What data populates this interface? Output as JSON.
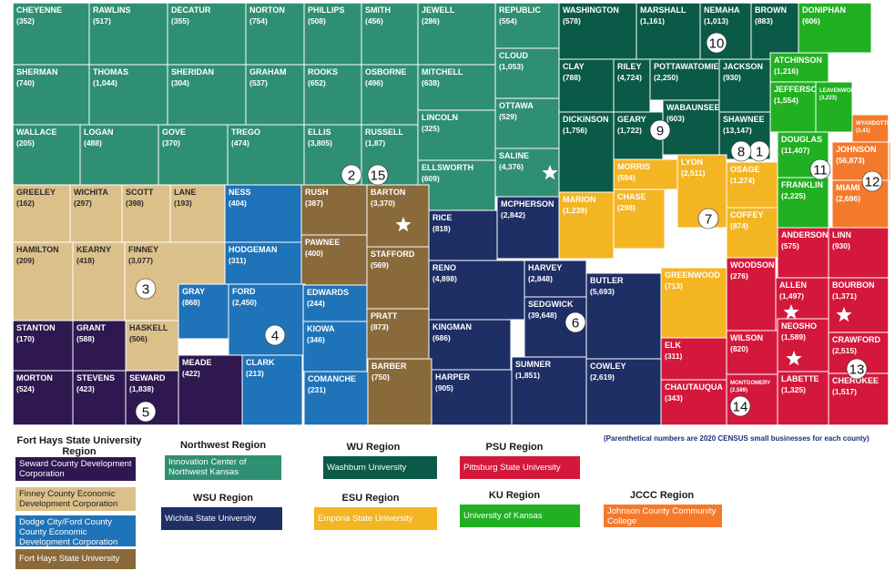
{
  "colors": {
    "northwest": "#2f8f73",
    "ku_board": "#0b5a48",
    "ku": "#21b021",
    "jccc": "#f47a2b",
    "fhsu_tan": "#dcc08a",
    "seward": "#2f1750",
    "dodge": "#1f73b8",
    "fhsu": "#8a6a3a",
    "wsu": "#1e2f66",
    "esu": "#f4b523",
    "psu": "#d4183c"
  },
  "counties": [
    {
      "name": "CHEYENNE",
      "value": "(352)",
      "region": "northwest"
    },
    {
      "name": "RAWLINS",
      "value": "(517)",
      "region": "northwest"
    },
    {
      "name": "DECATUR",
      "value": "(355)",
      "region": "northwest"
    },
    {
      "name": "NORTON",
      "value": "(754)",
      "region": "northwest"
    },
    {
      "name": "PHILLIPS",
      "value": "(508)",
      "region": "northwest"
    },
    {
      "name": "SMITH",
      "value": "(456)",
      "region": "northwest"
    },
    {
      "name": "JEWELL",
      "value": "(286)",
      "region": "northwest"
    },
    {
      "name": "REPUBLIC",
      "value": "(554)",
      "region": "northwest"
    },
    {
      "name": "WASHINGTON",
      "value": "(578)",
      "region": "ku_board"
    },
    {
      "name": "MARSHALL",
      "value": "(1,161)",
      "region": "ku_board"
    },
    {
      "name": "NEMAHA",
      "value": "(1,013)",
      "region": "ku_board"
    },
    {
      "name": "BROWN",
      "value": "(883)",
      "region": "ku_board"
    },
    {
      "name": "DONIPHAN",
      "value": "(606)",
      "region": "ku"
    },
    {
      "name": "SHERMAN",
      "value": "(740)",
      "region": "northwest"
    },
    {
      "name": "THOMAS",
      "value": "(1,044)",
      "region": "northwest"
    },
    {
      "name": "SHERIDAN",
      "value": "(304)",
      "region": "northwest"
    },
    {
      "name": "GRAHAM",
      "value": "(537)",
      "region": "northwest"
    },
    {
      "name": "ROOKS",
      "value": "(652)",
      "region": "northwest"
    },
    {
      "name": "OSBORNE",
      "value": "(496)",
      "region": "northwest"
    },
    {
      "name": "MITCHELL",
      "value": "(638)",
      "region": "northwest"
    },
    {
      "name": "CLOUD",
      "value": "(1,053)",
      "region": "northwest"
    },
    {
      "name": "CLAY",
      "value": "(788)",
      "region": "ku_board"
    },
    {
      "name": "RILEY",
      "value": "(4,724)",
      "region": "ku_board"
    },
    {
      "name": "POTTAWATOMIE",
      "value": "(2,250)",
      "region": "ku_board"
    },
    {
      "name": "JACKSON",
      "value": "(930)",
      "region": "ku_board"
    },
    {
      "name": "ATCHINSON",
      "value": "(1,216)",
      "region": "ku"
    },
    {
      "name": "WALLACE",
      "value": "(205)",
      "region": "northwest"
    },
    {
      "name": "LOGAN",
      "value": "(488)",
      "region": "northwest"
    },
    {
      "name": "GOVE",
      "value": "(370)",
      "region": "northwest"
    },
    {
      "name": "TREGO",
      "value": "(474)",
      "region": "northwest"
    },
    {
      "name": "ELLIS",
      "value": "(3,805)",
      "region": "northwest"
    },
    {
      "name": "RUSSELL",
      "value": "(1,87)",
      "region": "northwest"
    },
    {
      "name": "LINCOLN",
      "value": "(325)",
      "region": "northwest"
    },
    {
      "name": "OTTAWA",
      "value": "(529)",
      "region": "northwest"
    },
    {
      "name": "DICKINSON",
      "value": "(1,756)",
      "region": "ku_board"
    },
    {
      "name": "GEARY",
      "value": "(1,722)",
      "region": "ku_board"
    },
    {
      "name": "WABAUNSEE",
      "value": "(603)",
      "region": "ku_board"
    },
    {
      "name": "SHAWNEE",
      "value": "(13,147)",
      "region": "ku_board"
    },
    {
      "name": "JEFFERSON",
      "value": "(1,554)",
      "region": "ku"
    },
    {
      "name": "LEAVENWORTH",
      "value": "(3,223)",
      "region": "ku"
    },
    {
      "name": "WYANDOTTE",
      "value": "(3,41)",
      "region": "jccc"
    },
    {
      "name": "ELLSWORTH",
      "value": "(609)",
      "region": "northwest"
    },
    {
      "name": "SALINE",
      "value": "(4,376)",
      "region": "northwest"
    },
    {
      "name": "MORRIS",
      "value": "(594)",
      "region": "esu"
    },
    {
      "name": "LYON",
      "value": "(2,511)",
      "region": "esu"
    },
    {
      "name": "OSAGE",
      "value": "(1,274)",
      "region": "esu"
    },
    {
      "name": "DOUGLAS",
      "value": "(11,407)",
      "region": "ku"
    },
    {
      "name": "JOHNSON",
      "value": "(56,873)",
      "region": "jccc"
    },
    {
      "name": "GREELEY",
      "value": "(162)",
      "region": "fhsu_tan"
    },
    {
      "name": "WICHITA",
      "value": "(297)",
      "region": "fhsu_tan"
    },
    {
      "name": "SCOTT",
      "value": "(398)",
      "region": "fhsu_tan"
    },
    {
      "name": "LANE",
      "value": "(193)",
      "region": "fhsu_tan"
    },
    {
      "name": "NESS",
      "value": "(404)",
      "region": "dodge"
    },
    {
      "name": "RUSH",
      "value": "(387)",
      "region": "fhsu"
    },
    {
      "name": "BARTON",
      "value": "(3,370)",
      "region": "fhsu"
    },
    {
      "name": "RICE",
      "value": "(818)",
      "region": "wsu"
    },
    {
      "name": "MCPHERSON",
      "value": "(2,842)",
      "region": "wsu"
    },
    {
      "name": "MARION",
      "value": "(1,239)",
      "region": "esu"
    },
    {
      "name": "CHASE",
      "value": "(298)",
      "region": "esu"
    },
    {
      "name": "COFFEY",
      "value": "(874)",
      "region": "esu"
    },
    {
      "name": "FRANKLIN",
      "value": "(2,225)",
      "region": "ku"
    },
    {
      "name": "MIAMI",
      "value": "(2,696)",
      "region": "jccc"
    },
    {
      "name": "HAMILTON",
      "value": "(209)",
      "region": "fhsu_tan"
    },
    {
      "name": "KEARNY",
      "value": "(418)",
      "region": "fhsu_tan"
    },
    {
      "name": "FINNEY",
      "value": "(3,077)",
      "region": "fhsu_tan"
    },
    {
      "name": "HODGEMAN",
      "value": "(311)",
      "region": "dodge"
    },
    {
      "name": "PAWNEE",
      "value": "(400)",
      "region": "fhsu"
    },
    {
      "name": "STAFFORD",
      "value": "(569)",
      "region": "fhsu"
    },
    {
      "name": "RENO",
      "value": "(4,898)",
      "region": "wsu"
    },
    {
      "name": "HARVEY",
      "value": "(2,848)",
      "region": "wsu"
    },
    {
      "name": "BUTLER",
      "value": "(5,693)",
      "region": "wsu"
    },
    {
      "name": "GREENWOOD",
      "value": "(713)",
      "region": "esu"
    },
    {
      "name": "ANDERSON",
      "value": "(575)",
      "region": "psu"
    },
    {
      "name": "LINN",
      "value": "(930)",
      "region": "psu"
    },
    {
      "name": "GRAY",
      "value": "(868)",
      "region": "dodge"
    },
    {
      "name": "FORD",
      "value": "(2,450)",
      "region": "dodge"
    },
    {
      "name": "EDWARDS",
      "value": "(244)",
      "region": "dodge"
    },
    {
      "name": "SEDGWICK",
      "value": "(39,648)",
      "region": "wsu"
    },
    {
      "name": "WOODSON",
      "value": "(276)",
      "region": "psu"
    },
    {
      "name": "ALLEN",
      "value": "(1,497)",
      "region": "psu"
    },
    {
      "name": "BOURBON",
      "value": "(1,371)",
      "region": "psu"
    },
    {
      "name": "STANTON",
      "value": "(170)",
      "region": "seward"
    },
    {
      "name": "GRANT",
      "value": "(588)",
      "region": "seward"
    },
    {
      "name": "HASKELL",
      "value": "(506)",
      "region": "fhsu_tan"
    },
    {
      "name": "KIOWA",
      "value": "(346)",
      "region": "dodge"
    },
    {
      "name": "PRATT",
      "value": "(873)",
      "region": "fhsu"
    },
    {
      "name": "KINGMAN",
      "value": "(686)",
      "region": "wsu"
    },
    {
      "name": "WILSON",
      "value": "(820)",
      "region": "psu"
    },
    {
      "name": "NEOSHO",
      "value": "(1,589)",
      "region": "psu"
    },
    {
      "name": "CRAWFORD",
      "value": "(2,515)",
      "region": "psu"
    },
    {
      "name": "MORTON",
      "value": "(524)",
      "region": "seward"
    },
    {
      "name": "STEVENS",
      "value": "(423)",
      "region": "seward"
    },
    {
      "name": "SEWARD",
      "value": "(1,838)",
      "region": "seward"
    },
    {
      "name": "MEADE",
      "value": "(422)",
      "region": "seward"
    },
    {
      "name": "CLARK",
      "value": "(213)",
      "region": "dodge"
    },
    {
      "name": "COMANCHE",
      "value": "(231)",
      "region": "dodge"
    },
    {
      "name": "BARBER",
      "value": "(750)",
      "region": "fhsu"
    },
    {
      "name": "HARPER",
      "value": "(905)",
      "region": "wsu"
    },
    {
      "name": "SUMNER",
      "value": "(1,851)",
      "region": "wsu"
    },
    {
      "name": "COWLEY",
      "value": "(2,619)",
      "region": "wsu"
    },
    {
      "name": "ELK",
      "value": "(311)",
      "region": "psu"
    },
    {
      "name": "CHAUTAUQUA",
      "value": "(343)",
      "region": "psu"
    },
    {
      "name": "MONTGOMERY",
      "value": "(2,589)",
      "region": "psu"
    },
    {
      "name": "LABETTE",
      "value": "(1,325)",
      "region": "psu"
    },
    {
      "name": "CHEROKEE",
      "value": "(1,517)",
      "region": "psu"
    }
  ],
  "region_numbers": [
    "1",
    "2",
    "3",
    "4",
    "5",
    "6",
    "7",
    "8",
    "9",
    "10",
    "11",
    "12",
    "13",
    "14",
    "15"
  ],
  "note": "(Parenthetical numbers are 2020 CENSUS small businesses for each county)",
  "legend": {
    "fhsu_title": "Fort Hays State University Region",
    "fhsu_items": [
      "Seward County Development Corporation",
      "Finney County Economic Development Corporation",
      "Dodge City/Ford County County Economic Development Corporation",
      "Fort Hays State University"
    ],
    "northwest_title": "Northwest Region",
    "northwest_item": "Innovation Center of Northwest Kansas",
    "wu_title": "WU Region",
    "wu_item": "Washburn University",
    "psu_title": "PSU Region",
    "psu_item": "Pittsburg State University",
    "wsu_title": "WSU Region",
    "wsu_item": "Wichita State University",
    "esu_title": "ESU Region",
    "esu_item": "Emporia State University",
    "ku_title": "KU Region",
    "ku_item": "University of Kansas",
    "jccc_title": "JCCC Region",
    "jccc_item": "Johnson County Community College"
  }
}
